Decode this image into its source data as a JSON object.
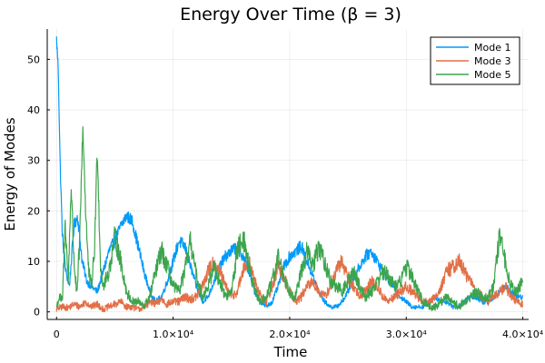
{
  "chart_data": {
    "type": "line",
    "title": "Energy Over Time (β = 3)",
    "xlabel": "Time",
    "ylabel": "Energy of Modes",
    "xlim": [
      -800,
      40500
    ],
    "ylim": [
      -1.5,
      56
    ],
    "grid": true,
    "legend_position": "top-right",
    "x_ticks": [
      {
        "value": 0,
        "label": "0"
      },
      {
        "value": 10000,
        "label": "1.0×10⁴"
      },
      {
        "value": 20000,
        "label": "2.0×10⁴"
      },
      {
        "value": 30000,
        "label": "3.0×10⁴"
      },
      {
        "value": 40000,
        "label": "4.0×10⁴"
      }
    ],
    "y_ticks": [
      0,
      10,
      20,
      30,
      40,
      50
    ],
    "series": [
      {
        "name": "Mode 1",
        "color": "#009af9",
        "noise": 0.9,
        "x": [
          0,
          150,
          300,
          500,
          800,
          1100,
          1500,
          1800,
          2200,
          2600,
          3000,
          3500,
          4000,
          4500,
          5000,
          5500,
          6000,
          6500,
          7000,
          7500,
          8000,
          8500,
          9000,
          9500,
          10000,
          10500,
          11000,
          11500,
          12000,
          12500,
          13000,
          13500,
          14000,
          14500,
          15000,
          15500,
          16000,
          16500,
          17000,
          17500,
          18000,
          18500,
          19000,
          19500,
          20000,
          20500,
          21000,
          21500,
          22000,
          22500,
          23000,
          23500,
          24000,
          24500,
          25000,
          25500,
          26000,
          26500,
          27000,
          27500,
          28000,
          28500,
          29000,
          29500,
          30000,
          30500,
          31000,
          31500,
          32000,
          32500,
          33000,
          33500,
          34000,
          34500,
          35000,
          35500,
          36000,
          36500,
          37000,
          37500,
          38000,
          38500,
          39000,
          39500,
          40000
        ],
        "y": [
          54,
          48,
          30,
          15,
          8,
          5,
          17,
          19,
          10,
          6,
          5,
          4,
          8,
          12,
          14,
          17,
          19,
          18,
          13,
          8,
          4,
          2,
          3,
          6,
          10,
          14,
          13,
          9,
          5,
          2,
          3,
          6,
          9,
          11,
          12,
          13,
          11,
          8,
          4,
          2,
          1,
          2,
          5,
          9,
          11,
          12,
          13,
          10,
          7,
          4,
          2,
          1,
          1,
          2,
          4,
          7,
          9,
          11,
          12,
          10,
          8,
          6,
          5,
          3,
          2,
          1,
          1,
          1,
          2,
          3,
          2,
          2,
          1,
          1,
          2,
          3,
          3,
          2,
          2,
          3,
          4,
          5,
          4,
          3,
          3
        ]
      },
      {
        "name": "Mode 3",
        "color": "#e26f46",
        "noise": 1.4,
        "x": [
          0,
          500,
          1000,
          1500,
          2000,
          2500,
          3000,
          3500,
          4000,
          4500,
          5000,
          5500,
          6000,
          6500,
          7000,
          7500,
          8000,
          8500,
          9000,
          9500,
          10000,
          10500,
          11000,
          11500,
          12000,
          12500,
          13000,
          13500,
          14000,
          14500,
          15000,
          15500,
          16000,
          16500,
          17000,
          17500,
          18000,
          18500,
          19000,
          19500,
          20000,
          20500,
          21000,
          21500,
          22000,
          22500,
          23000,
          23500,
          24000,
          24500,
          25000,
          25500,
          26000,
          26500,
          27000,
          27500,
          28000,
          28500,
          29000,
          29500,
          30000,
          30500,
          31000,
          31500,
          32000,
          32500,
          33000,
          33500,
          34000,
          34500,
          35000,
          35500,
          36000,
          36500,
          37000,
          37500,
          38000,
          38500,
          39000,
          39500,
          40000
        ],
        "y": [
          0.5,
          1,
          0.8,
          1.5,
          1,
          2,
          1,
          1.5,
          0.5,
          1,
          1.5,
          2,
          1,
          1,
          0.5,
          1,
          2,
          1.5,
          2.5,
          1.5,
          2,
          2,
          3,
          2.5,
          3,
          5,
          8,
          10,
          8,
          5,
          3,
          4,
          8,
          10,
          6,
          3,
          2,
          5,
          9,
          7,
          4,
          2,
          3,
          5,
          6,
          4,
          3,
          5,
          8,
          10,
          7,
          5,
          3,
          4,
          6,
          5,
          3,
          2,
          3,
          4,
          5,
          4,
          3,
          2,
          2,
          3,
          5,
          8,
          9,
          10,
          8,
          6,
          4,
          3,
          2,
          3,
          4,
          5,
          3,
          2,
          1.5
        ]
      },
      {
        "name": "Mode 5",
        "color": "#3da44d",
        "noise": 1.6,
        "x": [
          0,
          250,
          500,
          750,
          1000,
          1250,
          1500,
          1750,
          2000,
          2250,
          2500,
          2750,
          3000,
          3250,
          3500,
          3750,
          4000,
          4500,
          5000,
          5500,
          6000,
          6500,
          7000,
          7500,
          8000,
          8500,
          9000,
          9500,
          10000,
          10500,
          11000,
          11500,
          12000,
          12500,
          13000,
          13500,
          14000,
          14500,
          15000,
          15500,
          16000,
          16500,
          17000,
          17500,
          18000,
          18500,
          19000,
          19500,
          20000,
          20500,
          21000,
          21500,
          22000,
          22500,
          23000,
          23500,
          24000,
          24500,
          25000,
          25500,
          26000,
          26500,
          27000,
          27500,
          28000,
          28500,
          29000,
          29500,
          30000,
          30500,
          31000,
          31500,
          32000,
          32500,
          33000,
          33500,
          34000,
          34500,
          35000,
          35500,
          36000,
          36500,
          37000,
          37500,
          38000,
          38500,
          39000,
          39500,
          40000
        ],
        "y": [
          1,
          3,
          2,
          18,
          6,
          25,
          10,
          3,
          15,
          37,
          20,
          8,
          5,
          12,
          33,
          10,
          5,
          8,
          15,
          10,
          4,
          2,
          2,
          1,
          3,
          8,
          12,
          9,
          5,
          4,
          8,
          14,
          7,
          3,
          5,
          9,
          6,
          3,
          4,
          12,
          15,
          9,
          4,
          2,
          3,
          6,
          11,
          7,
          4,
          3,
          8,
          12,
          9,
          13,
          10,
          6,
          5,
          4,
          6,
          8,
          5,
          3,
          4,
          6,
          8,
          7,
          5,
          6,
          9,
          7,
          4,
          2,
          1,
          1,
          2,
          3,
          2,
          1,
          2,
          3,
          4,
          3,
          3,
          5,
          15,
          10,
          5,
          4,
          6
        ]
      }
    ]
  }
}
